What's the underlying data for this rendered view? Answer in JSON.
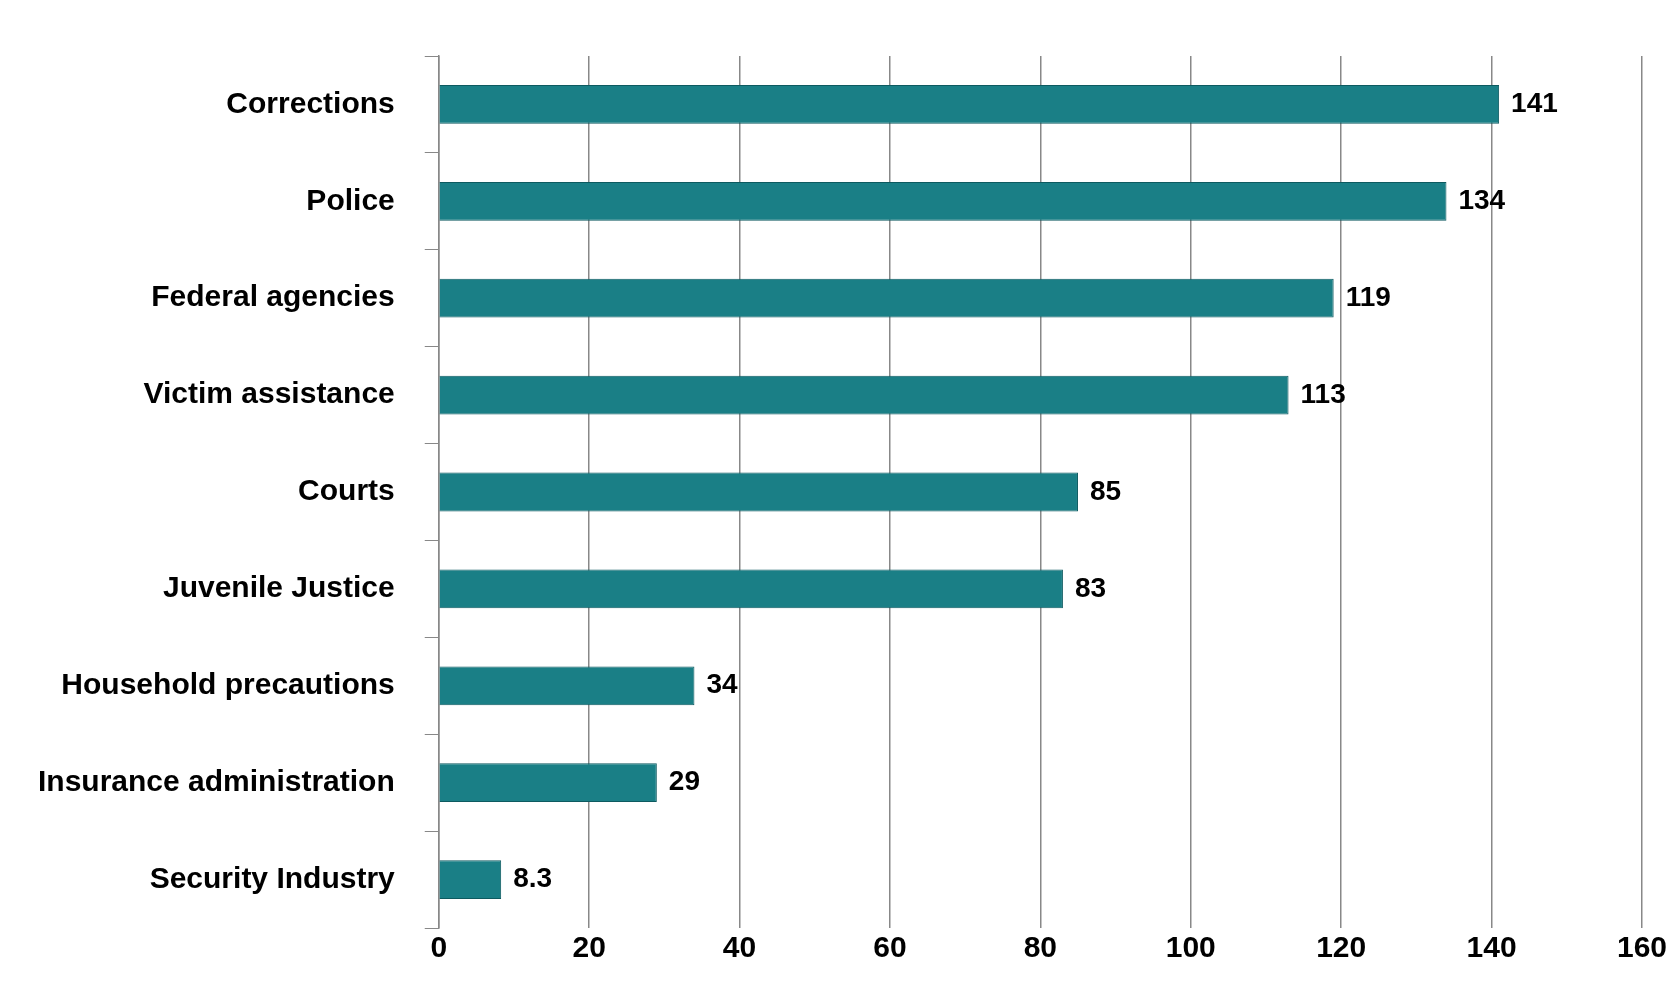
{
  "chart_data": {
    "type": "bar",
    "orientation": "horizontal",
    "categories": [
      "Corrections",
      "Police",
      "Federal agencies",
      "Victim assistance",
      "Courts",
      "Juvenile Justice",
      "Household precautions",
      "Insurance administration",
      "Security Industry"
    ],
    "values": [
      141,
      134,
      119,
      113,
      85,
      83,
      34,
      29,
      8.3
    ],
    "color": "#1a7f86",
    "xlim": [
      0,
      160
    ],
    "xticks": [
      0,
      20,
      40,
      60,
      80,
      100,
      120,
      140,
      160
    ],
    "grid": "x",
    "data_labels": true
  }
}
